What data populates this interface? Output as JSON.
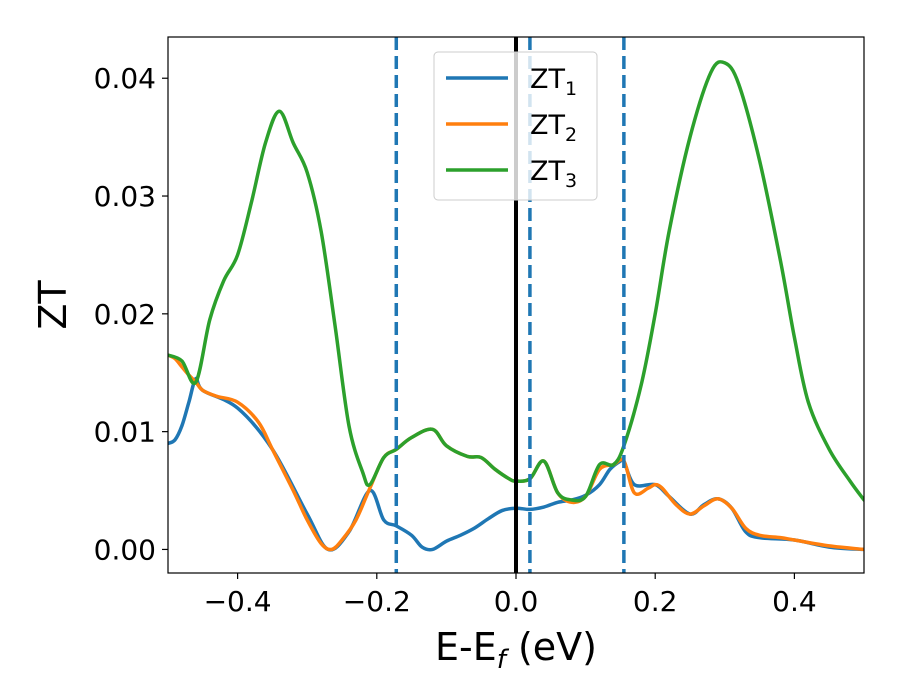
{
  "chart_data": {
    "type": "line",
    "title": "",
    "xlabel": "E-E",
    "xlabel_sub": "f",
    "xlabel_unit": " (eV)",
    "ylabel": "ZT",
    "xlim": [
      -0.5,
      0.5
    ],
    "ylim": [
      -0.002,
      0.0435
    ],
    "xticks": [
      -0.4,
      -0.2,
      0.0,
      0.2,
      0.4
    ],
    "xtick_labels": [
      "−0.4",
      "−0.2",
      "0.0",
      "0.2",
      "0.4"
    ],
    "yticks": [
      0.0,
      0.01,
      0.02,
      0.03,
      0.04
    ],
    "ytick_labels": [
      "0.00",
      "0.01",
      "0.02",
      "0.03",
      "0.04"
    ],
    "grid": false,
    "legend": "top-center",
    "solid_vline": {
      "x": 0.0,
      "color": "#000000"
    },
    "dashed_vlines": {
      "x": [
        -0.172,
        0.02,
        0.155
      ],
      "color": "#1f77b4"
    },
    "series": [
      {
        "name": "ZT",
        "name_sub": "1",
        "color": "#1f77b4",
        "x": [
          -0.5,
          -0.49,
          -0.48,
          -0.47,
          -0.46,
          -0.45,
          -0.4,
          -0.35,
          -0.3,
          -0.27,
          -0.24,
          -0.21,
          -0.19,
          -0.172,
          -0.15,
          -0.135,
          -0.12,
          -0.1,
          -0.08,
          -0.06,
          -0.04,
          -0.02,
          0.0,
          0.02,
          0.04,
          0.06,
          0.08,
          0.1,
          0.12,
          0.135,
          0.15,
          0.155,
          0.17,
          0.2,
          0.22,
          0.25,
          0.27,
          0.29,
          0.31,
          0.33,
          0.35,
          0.4,
          0.45,
          0.5
        ],
        "values": [
          0.009,
          0.0093,
          0.0105,
          0.0125,
          0.0145,
          0.0135,
          0.012,
          0.0085,
          0.003,
          0.0,
          0.0015,
          0.005,
          0.0025,
          0.002,
          0.0012,
          0.0002,
          0.0,
          0.0007,
          0.0012,
          0.0018,
          0.0026,
          0.0033,
          0.0035,
          0.0034,
          0.0036,
          0.004,
          0.0042,
          0.0046,
          0.0055,
          0.0068,
          0.0075,
          0.0075,
          0.0055,
          0.0055,
          0.0045,
          0.003,
          0.0038,
          0.0043,
          0.0035,
          0.0015,
          0.001,
          0.0008,
          0.0002,
          0.0
        ]
      },
      {
        "name": "ZT",
        "name_sub": "2",
        "color": "#ff7f0e",
        "x": [
          -0.5,
          -0.49,
          -0.48,
          -0.47,
          -0.46,
          -0.45,
          -0.43,
          -0.4,
          -0.37,
          -0.35,
          -0.32,
          -0.3,
          -0.28,
          -0.265,
          -0.25,
          -0.23,
          -0.21,
          -0.19,
          -0.172,
          -0.15,
          -0.12,
          -0.1,
          -0.07,
          -0.05,
          -0.03,
          -0.01,
          0.0,
          0.02,
          0.04,
          0.06,
          0.08,
          0.1,
          0.12,
          0.14,
          0.155,
          0.17,
          0.19,
          0.2,
          0.21,
          0.23,
          0.25,
          0.27,
          0.29,
          0.31,
          0.33,
          0.35,
          0.38,
          0.4,
          0.45,
          0.5
        ],
        "values": [
          0.0165,
          0.0162,
          0.0155,
          0.0148,
          0.0142,
          0.0135,
          0.013,
          0.0125,
          0.0108,
          0.0085,
          0.005,
          0.0025,
          0.0005,
          0.0,
          0.0008,
          0.0025,
          0.0052,
          0.0078,
          0.0085,
          0.0095,
          0.0102,
          0.0088,
          0.0079,
          0.0078,
          0.0068,
          0.006,
          0.0058,
          0.006,
          0.0075,
          0.0048,
          0.004,
          0.0045,
          0.0068,
          0.0072,
          0.0075,
          0.0048,
          0.0052,
          0.0055,
          0.0052,
          0.0038,
          0.003,
          0.0037,
          0.0043,
          0.0035,
          0.0018,
          0.0012,
          0.001,
          0.0008,
          0.0003,
          0.0
        ]
      },
      {
        "name": "ZT",
        "name_sub": "3",
        "color": "#2ca02c",
        "x": [
          -0.5,
          -0.48,
          -0.46,
          -0.44,
          -0.42,
          -0.4,
          -0.38,
          -0.36,
          -0.34,
          -0.32,
          -0.3,
          -0.28,
          -0.26,
          -0.24,
          -0.22,
          -0.21,
          -0.19,
          -0.172,
          -0.15,
          -0.12,
          -0.1,
          -0.07,
          -0.05,
          -0.03,
          -0.01,
          0.0,
          0.02,
          0.04,
          0.06,
          0.08,
          0.1,
          0.12,
          0.14,
          0.155,
          0.18,
          0.2,
          0.22,
          0.25,
          0.28,
          0.3,
          0.32,
          0.35,
          0.38,
          0.4,
          0.42,
          0.45,
          0.48,
          0.5
        ],
        "values": [
          0.0165,
          0.016,
          0.0142,
          0.0195,
          0.0228,
          0.025,
          0.0295,
          0.0345,
          0.0372,
          0.0345,
          0.032,
          0.027,
          0.019,
          0.0105,
          0.0065,
          0.0055,
          0.0078,
          0.0085,
          0.0095,
          0.0102,
          0.0088,
          0.0079,
          0.0078,
          0.0068,
          0.006,
          0.0058,
          0.006,
          0.0075,
          0.0048,
          0.0042,
          0.0045,
          0.0072,
          0.0072,
          0.0088,
          0.014,
          0.02,
          0.027,
          0.035,
          0.0405,
          0.0413,
          0.0395,
          0.033,
          0.0245,
          0.018,
          0.0125,
          0.0085,
          0.0058,
          0.0042
        ]
      }
    ]
  }
}
